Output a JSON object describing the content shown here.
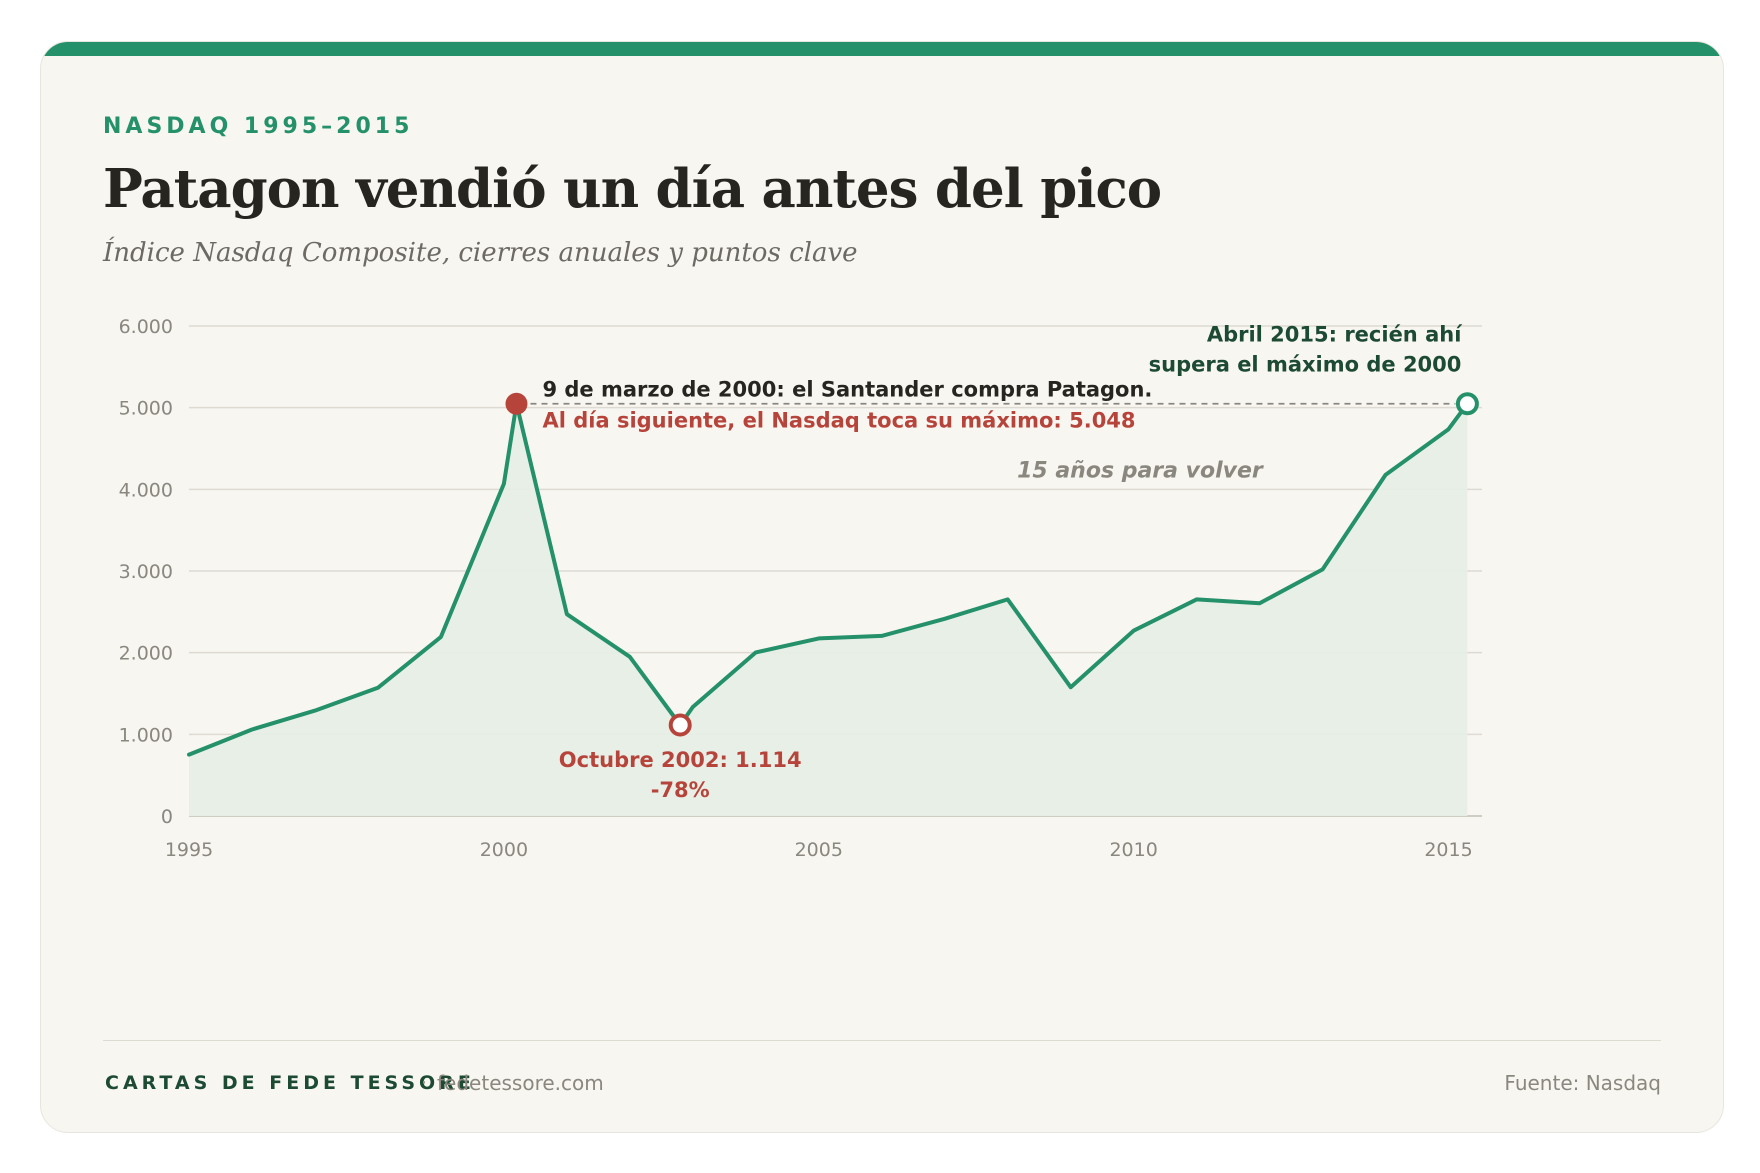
{
  "eyebrow": "NASDAQ 1995–2015",
  "title": "Patagon vendió un día antes del pico",
  "subtitle": "Índice Nasdaq Composite, cierres anuales y puntos clave",
  "footer": {
    "brand": "CARTAS DE FEDE TESSORE",
    "separator": "·",
    "site": "fedetessore.com",
    "source": "Fuente: Nasdaq"
  },
  "colors": {
    "accent": "#24916a",
    "line": "#24916a",
    "area": "#e6eee6",
    "peak": "#b7443b",
    "dark_green": "#1c4a33",
    "text": "#26251f",
    "muted": "#8a877f"
  },
  "chart_data": {
    "type": "line",
    "title": "Patagon vendió un día antes del pico",
    "subtitle": "Índice Nasdaq Composite, cierres anuales y puntos clave",
    "xlabel": "",
    "ylabel": "",
    "xlim": [
      1995,
      2015.5
    ],
    "ylim": [
      0,
      6000
    ],
    "grid": true,
    "x_ticks": [
      {
        "value": 1995,
        "label": "1995"
      },
      {
        "value": 2000,
        "label": "2000"
      },
      {
        "value": 2005,
        "label": "2005"
      },
      {
        "value": 2010,
        "label": "2010"
      },
      {
        "value": 2015,
        "label": "2015"
      }
    ],
    "y_ticks": [
      {
        "value": 0,
        "label": "0"
      },
      {
        "value": 1000,
        "label": "1.000"
      },
      {
        "value": 2000,
        "label": "2.000"
      },
      {
        "value": 3000,
        "label": "3.000"
      },
      {
        "value": 4000,
        "label": "4.000"
      },
      {
        "value": 5000,
        "label": "5.000"
      },
      {
        "value": 6000,
        "label": "6.000"
      }
    ],
    "series": [
      {
        "points": [
          {
            "x": 1995,
            "y": 752
          },
          {
            "x": 1996,
            "y": 1059
          },
          {
            "x": 1997,
            "y": 1291
          },
          {
            "x": 1998,
            "y": 1570
          },
          {
            "x": 1999,
            "y": 2193
          },
          {
            "x": 2000,
            "y": 4069
          },
          {
            "x": 2000.2,
            "y": 5048
          },
          {
            "x": 2001,
            "y": 2471
          },
          {
            "x": 2002,
            "y": 1950
          },
          {
            "x": 2002.8,
            "y": 1114
          },
          {
            "x": 2003,
            "y": 1335
          },
          {
            "x": 2004,
            "y": 2003
          },
          {
            "x": 2005,
            "y": 2175
          },
          {
            "x": 2006,
            "y": 2205
          },
          {
            "x": 2007,
            "y": 2415
          },
          {
            "x": 2008,
            "y": 2652
          },
          {
            "x": 2009,
            "y": 1577
          },
          {
            "x": 2010,
            "y": 2269
          },
          {
            "x": 2011,
            "y": 2652
          },
          {
            "x": 2012,
            "y": 2605
          },
          {
            "x": 2013,
            "y": 3020
          },
          {
            "x": 2014,
            "y": 4177
          },
          {
            "x": 2015,
            "y": 4736
          },
          {
            "x": 2015.3,
            "y": 5048
          }
        ]
      }
    ],
    "annotations": {
      "peak": {
        "x": 2000.2,
        "y": 5048,
        "line1": "9 de marzo de 2000: el Santander compra Patagon.",
        "line2": "Al día siguiente, el Nasdaq toca su máximo: 5.048"
      },
      "trough": {
        "x": 2002.8,
        "y": 1114,
        "line1": "Octubre 2002: 1.114",
        "line2": "-78%"
      },
      "recovery": {
        "x": 2015.3,
        "y": 5048,
        "line1": "Abril 2015: recién ahí",
        "line2": "supera el máximo de 2000"
      },
      "gap_label": "15 años para volver"
    }
  }
}
